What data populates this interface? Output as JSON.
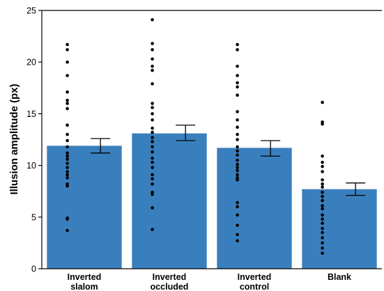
{
  "chart_data": {
    "type": "bar",
    "title": "",
    "xlabel": "",
    "ylabel": "Illusion amplitude (px)",
    "ylim": [
      0,
      25
    ],
    "yticks": [
      0,
      5,
      10,
      15,
      20,
      25
    ],
    "grid": false,
    "legend": "none",
    "bar_color": "#3a7fbd",
    "point_color": "#000000",
    "categories": [
      {
        "line1": "Inverted",
        "line2": "slalom"
      },
      {
        "line1": "Inverted",
        "line2": "occluded"
      },
      {
        "line1": "Inverted",
        "line2": "control"
      },
      {
        "line1": "Blank",
        "line2": ""
      }
    ],
    "values": [
      11.9,
      13.1,
      11.7,
      7.7
    ],
    "error": [
      {
        "low": 11.2,
        "high": 12.6
      },
      {
        "low": 12.4,
        "high": 13.9
      },
      {
        "low": 10.9,
        "high": 12.4
      },
      {
        "low": 7.1,
        "high": 8.3
      }
    ],
    "points": [
      [
        21.7,
        21.2,
        20.0,
        18.7,
        17.1,
        16.3,
        16.0,
        15.5,
        13.9,
        13.0,
        12.4,
        11.8,
        11.2,
        10.9,
        10.6,
        10.2,
        9.8,
        9.4,
        9.1,
        8.8,
        8.2,
        8.0,
        4.9,
        4.8,
        3.7
      ],
      [
        24.1,
        21.8,
        21.2,
        20.3,
        19.6,
        19.2,
        17.9,
        16.0,
        15.6,
        15.0,
        14.4,
        13.6,
        13.2,
        12.7,
        12.3,
        11.8,
        11.3,
        10.7,
        10.3,
        9.8,
        9.1,
        8.7,
        8.2,
        7.4,
        7.2,
        5.9,
        3.8
      ],
      [
        21.7,
        21.2,
        19.6,
        18.7,
        18.0,
        17.6,
        16.8,
        15.2,
        14.4,
        13.7,
        13.0,
        12.5,
        11.8,
        11.4,
        11.0,
        10.5,
        10.1,
        9.8,
        9.5,
        9.1,
        8.8,
        8.6,
        6.4,
        6.0,
        5.2,
        4.2,
        3.3,
        2.7
      ],
      [
        16.1,
        14.2,
        14.0,
        10.9,
        10.3,
        9.9,
        9.4,
        8.6,
        8.2,
        7.9,
        7.4,
        7.0,
        6.6,
        6.1,
        5.8,
        5.2,
        4.8,
        4.4,
        3.9,
        3.5,
        3.0,
        2.5,
        2.0,
        1.5
      ]
    ]
  }
}
